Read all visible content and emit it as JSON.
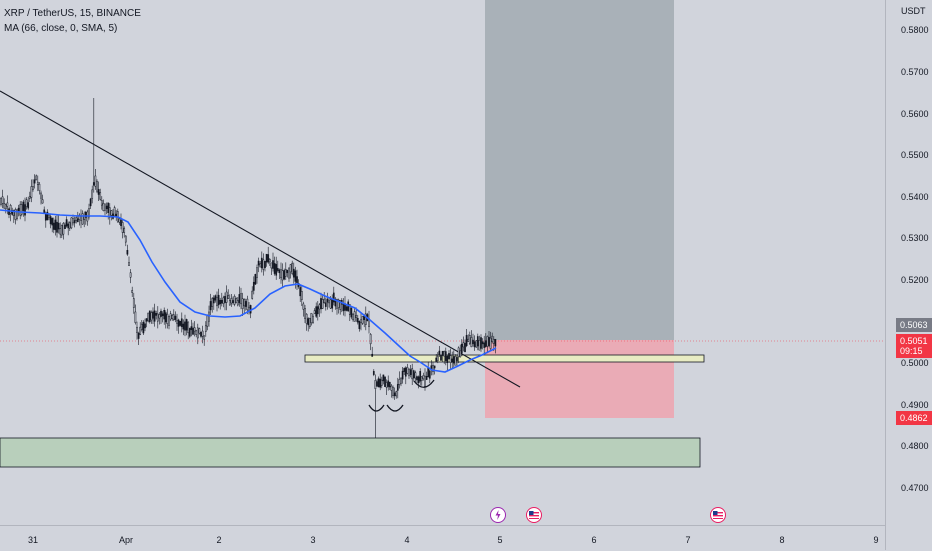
{
  "legend": {
    "symbol_line": "XRP / TetherUS, 15, BINANCE",
    "indicator_line": "MA (66, close, 0, SMA, 5)"
  },
  "price_axis": {
    "currency": "USDT",
    "ticks": [
      "0.5800",
      "0.5700",
      "0.5600",
      "0.5500",
      "0.5400",
      "0.5300",
      "0.5200",
      "0.5000",
      "0.4900",
      "0.4800",
      "0.4700"
    ],
    "last_price_tag": "0.5063",
    "current_price": "0.5051",
    "countdown": "09:15",
    "stop_price": "0.4862"
  },
  "time_axis": {
    "labels": [
      "31",
      "Apr",
      "2",
      "3",
      "4",
      "5",
      "6",
      "7",
      "8",
      "9"
    ]
  },
  "events": [
    {
      "name": "dividend-event-icon",
      "kind": "lightning"
    },
    {
      "name": "us-flag-event-icon",
      "kind": "flag"
    },
    {
      "name": "us-flag-event-icon",
      "kind": "flag"
    }
  ],
  "colors": {
    "background": "#d1d4dc",
    "candle": "#131722",
    "moving_average": "#2962ff",
    "target_zone": "#a7afb5",
    "stop_zone": "#eca6b1",
    "support_zone": "#b8cfbb",
    "resistance_box": "#e8ecc3",
    "current_price_tag": "#f23645",
    "last_price_tag": "#787b86",
    "event_icon": "#e91e63"
  }
}
